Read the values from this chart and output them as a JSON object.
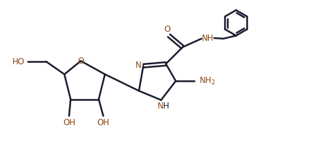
{
  "bg_color": "#ffffff",
  "bond_color": "#1a1a2e",
  "heteroatom_color": "#8B4513",
  "line_width": 1.8,
  "figsize": [
    4.47,
    2.43
  ],
  "dpi": 100,
  "xlim": [
    0,
    9
  ],
  "ylim": [
    0,
    5.5
  ]
}
